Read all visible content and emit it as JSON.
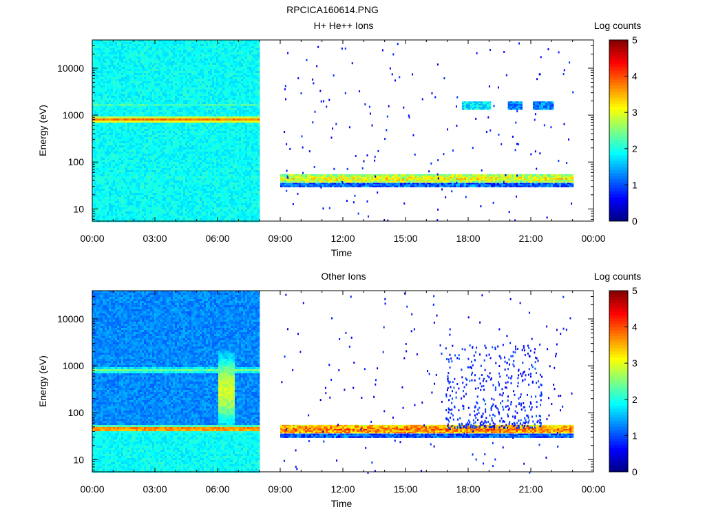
{
  "figure_title": "RPCICA160614.PNG",
  "chart_data": [
    {
      "type": "heatmap",
      "title": "H+ He++ Ions",
      "xlabel": "Time",
      "ylabel": "Energy (eV)",
      "x_ticks": [
        "00:00",
        "03:00",
        "06:00",
        "09:00",
        "12:00",
        "15:00",
        "18:00",
        "21:00",
        "00:00"
      ],
      "x_range_hours": [
        0,
        24
      ],
      "y_ticks": [
        {
          "value": 10,
          "label": "10"
        },
        {
          "value": 100,
          "label": "100"
        },
        {
          "value": 1000,
          "label": "1000"
        },
        {
          "value": 10000,
          "label": "10000"
        }
      ],
      "y_range": [
        5.5,
        40000
      ],
      "y_scale": "log",
      "colorbar": {
        "label": "Log counts",
        "range": [
          0,
          5
        ],
        "ticks": [
          "0",
          "1",
          "2",
          "3",
          "4",
          "5"
        ]
      },
      "segments": [
        {
          "name": "dense",
          "start_hour": 0.0,
          "end_hour": 8.0,
          "background_level": 1.9,
          "bands": [
            {
              "center_eV": 800,
              "level": 3.8
            },
            {
              "center_eV": 1650,
              "level": 2.2
            },
            {
              "center_eV": 45,
              "level": 2.1
            },
            {
              "below_eV": 35,
              "level": 0.9
            }
          ]
        },
        {
          "name": "sparse",
          "start_hour": 9.0,
          "end_hour": 23.0,
          "bands": [
            {
              "center_eV": 45,
              "level": 3.1
            },
            {
              "center_eV": 33,
              "level": 1.2
            }
          ],
          "patches": [
            {
              "start_hour": 17.7,
              "end_hour": 19.0,
              "center_eV": 1600,
              "level": 1.8
            },
            {
              "start_hour": 19.9,
              "end_hour": 20.5,
              "center_eV": 1600,
              "level": 1.3
            },
            {
              "start_hour": 21.1,
              "end_hour": 22.0,
              "center_eV": 1600,
              "level": 1.3
            }
          ]
        }
      ]
    },
    {
      "type": "heatmap",
      "title": "Other Ions",
      "xlabel": "Time",
      "ylabel": "Energy (eV)",
      "x_ticks": [
        "00:00",
        "03:00",
        "06:00",
        "09:00",
        "12:00",
        "15:00",
        "18:00",
        "21:00",
        "00:00"
      ],
      "x_range_hours": [
        0,
        24
      ],
      "y_ticks": [
        {
          "value": 10,
          "label": "10"
        },
        {
          "value": 100,
          "label": "100"
        },
        {
          "value": 1000,
          "label": "1000"
        },
        {
          "value": 10000,
          "label": "10000"
        }
      ],
      "y_range": [
        5.5,
        40000
      ],
      "y_scale": "log",
      "colorbar": {
        "label": "Log counts",
        "range": [
          0,
          5
        ],
        "ticks": [
          "0",
          "1",
          "2",
          "3",
          "4",
          "5"
        ]
      },
      "segments": [
        {
          "name": "dense",
          "start_hour": 0.0,
          "end_hour": 8.0,
          "background_level": 1.3,
          "bands": [
            {
              "center_eV": 800,
              "level": 2.4
            },
            {
              "center_eV": 45,
              "level": 3.9
            },
            {
              "below_eV": 35,
              "level": 1.9
            }
          ],
          "patches": [
            {
              "start_hour": 6.0,
              "end_hour": 6.8,
              "center_eV": 300,
              "level": 2.9
            }
          ]
        },
        {
          "name": "sparse",
          "start_hour": 9.0,
          "end_hour": 23.0,
          "bands": [
            {
              "center_eV": 45,
              "level": 3.8
            },
            {
              "center_eV": 33,
              "level": 1.2
            }
          ],
          "scatter_region": {
            "start_hour": 16.9,
            "end_hour": 21.5,
            "eV_range": [
              50,
              3000
            ],
            "level": 0.5
          }
        }
      ]
    }
  ]
}
